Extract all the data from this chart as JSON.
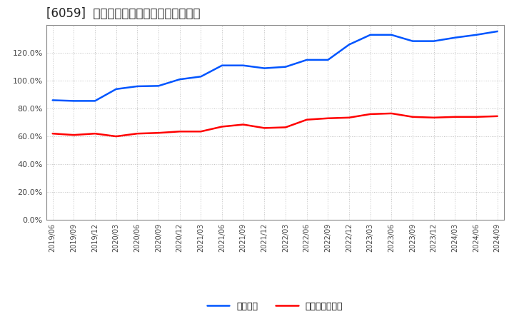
{
  "title": "[6059]  固定比率、固定長期適合率の推移",
  "x_labels": [
    "2019/06",
    "2019/09",
    "2019/12",
    "2020/03",
    "2020/06",
    "2020/09",
    "2020/12",
    "2021/03",
    "2021/06",
    "2021/09",
    "2021/12",
    "2022/03",
    "2022/06",
    "2022/09",
    "2022/12",
    "2023/03",
    "2023/06",
    "2023/09",
    "2023/12",
    "2024/03",
    "2024/06",
    "2024/09"
  ],
  "fixed_ratio": [
    0.86,
    0.855,
    0.855,
    0.94,
    0.96,
    0.963,
    1.01,
    1.03,
    1.11,
    1.11,
    1.09,
    1.1,
    1.15,
    1.15,
    1.26,
    1.33,
    1.33,
    1.285,
    1.285,
    1.31,
    1.33,
    1.355
  ],
  "fixed_long_ratio": [
    0.62,
    0.61,
    0.62,
    0.6,
    0.62,
    0.625,
    0.635,
    0.635,
    0.67,
    0.685,
    0.66,
    0.665,
    0.72,
    0.73,
    0.735,
    0.76,
    0.765,
    0.74,
    0.735,
    0.74,
    0.74,
    0.745
  ],
  "line1_color": "#0055FF",
  "line2_color": "#FF0000",
  "line1_label": "固定比率",
  "line2_label": "固定長期適合率",
  "ylim": [
    0.0,
    1.4
  ],
  "yticks": [
    0.0,
    0.2,
    0.4,
    0.6,
    0.8,
    1.0,
    1.2
  ],
  "background_color": "#FFFFFF",
  "grid_color": "#BBBBBB",
  "title_fontsize": 12
}
